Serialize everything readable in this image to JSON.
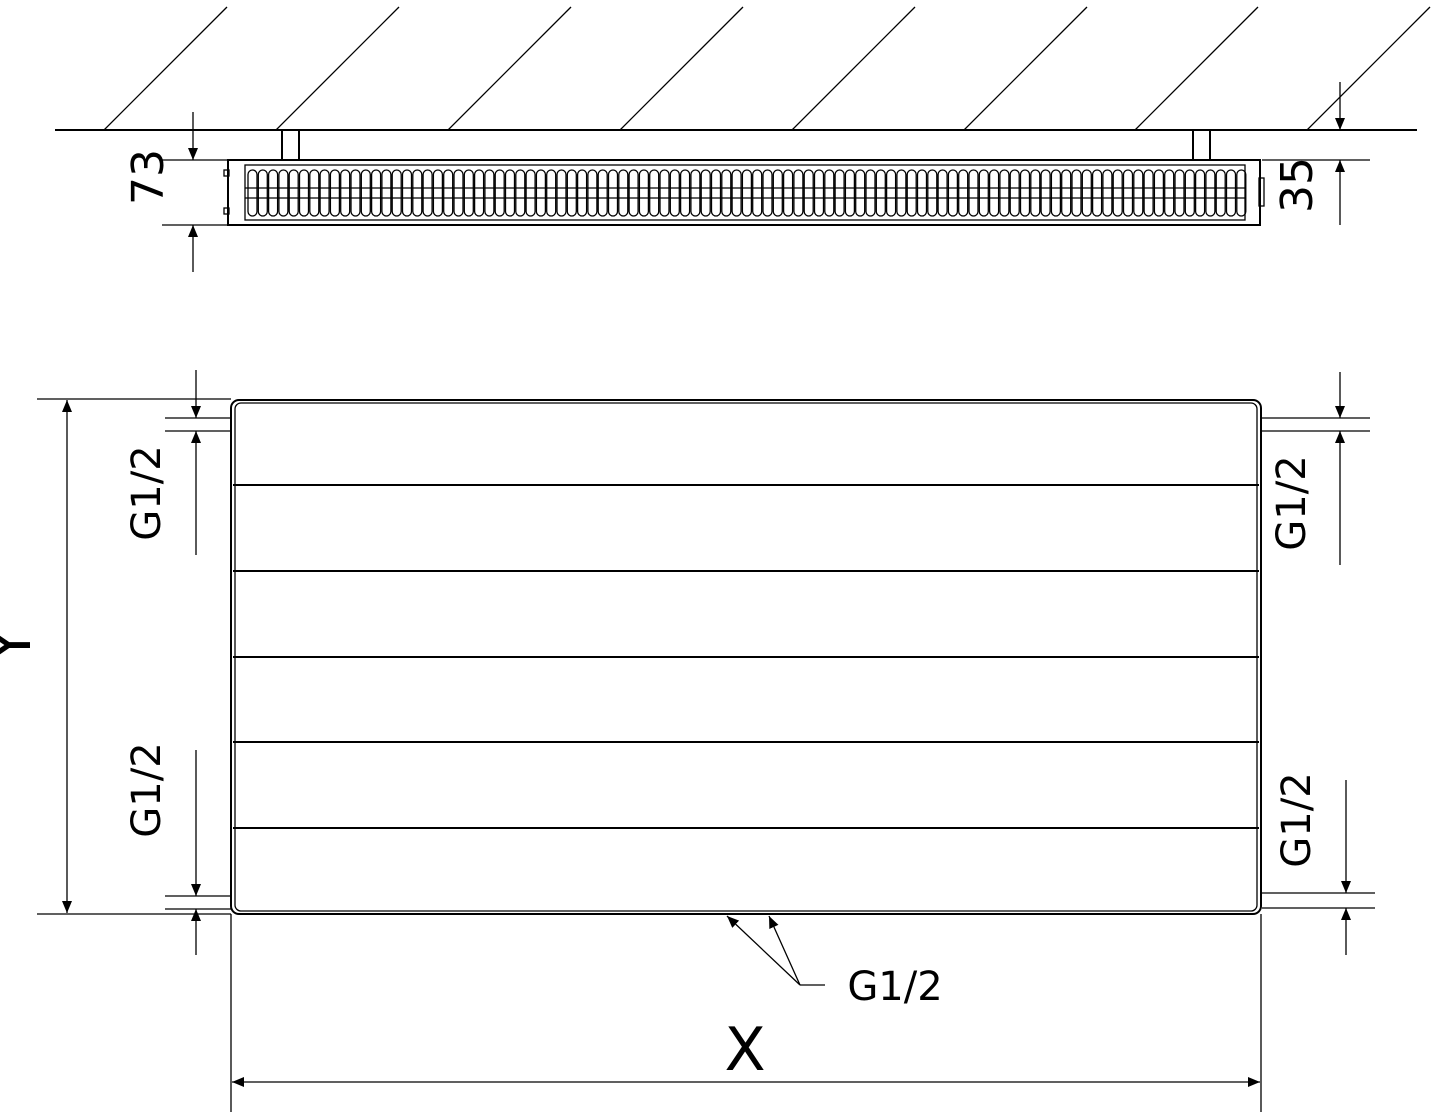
{
  "top_view": {
    "depth_label": "73",
    "wall_gap_label": "35"
  },
  "front_view": {
    "height_label": "Y",
    "width_label": "X",
    "connections": {
      "left_top": "G1/2",
      "left_bottom": "G1/2",
      "right_top": "G1/2",
      "right_bottom": "G1/2",
      "bottom": "G1/2"
    }
  },
  "colors": {
    "line": "#000000",
    "background": "#ffffff"
  }
}
